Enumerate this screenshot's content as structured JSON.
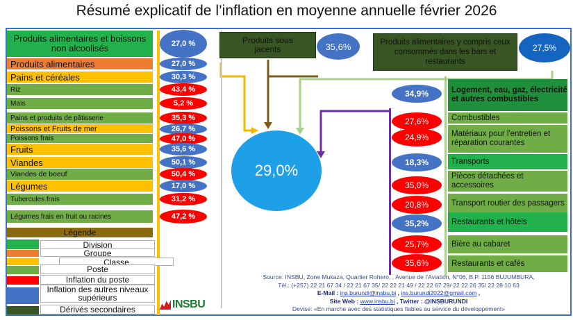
{
  "title": "Résumé  explicatif de l’inflation en moyenne annuelle février 2026",
  "colors": {
    "division": "#22b14c",
    "groupe": "#ed7d31",
    "classe": "#ffc000",
    "poste": "#70ad47",
    "inflation_poste": "#ff0000",
    "inflation_superieure": "#4472c4",
    "derives": "#375623",
    "legend_header": "#8a6a10",
    "frame": "#3b6fc9"
  },
  "left_items": [
    {
      "label": "Produits alimentaires et boissons  non alcoolisés",
      "value": "27,0 %"
    },
    {
      "label": "Produits alimentaires",
      "value": "27,0 %"
    },
    {
      "label": "Pains et céréales",
      "value": "30,3 %"
    },
    {
      "label": "Riz",
      "value": "43,4 %"
    },
    {
      "label": "Maïs",
      "value": "5,2 %"
    },
    {
      "label": "Pains et produits de pâtisserie",
      "value": "35,3 %"
    },
    {
      "label": "Poissons et Fruits de mer",
      "value": "26,7 %"
    },
    {
      "label": "Poissons frais",
      "value": "47,0 %"
    },
    {
      "label": "Fruits",
      "value": "35,6 %"
    },
    {
      "label": "Viandes",
      "value": "50,1 %"
    },
    {
      "label": "Viandes de boeuf",
      "value": "50,4 %"
    },
    {
      "label": "Légumes",
      "value": "17,0 %"
    },
    {
      "label": "Tubercules frais",
      "value": "31,2 %"
    },
    {
      "label": "Légumes frais en fruit ou racines",
      "value": "47,2 %"
    }
  ],
  "top": {
    "sous_jacents_label": "Produits sous jacents",
    "sous_jacents_value": "35,6%",
    "bars_label": "Produits alimentaires y compris ceux  consommés dans les bars et restaurants",
    "bars_value": "27,5%"
  },
  "center_value": "29,0%",
  "right_items": [
    {
      "label": "Logement, eau, gaz, électricité et autres combustibles",
      "value": "34,9%"
    },
    {
      "label": "Combustibles",
      "value": "27,6%"
    },
    {
      "label": "Matériaux pour l'entretien et réparation courantes",
      "value": "24,9%"
    },
    {
      "label": "Transports",
      "value": "18,3%"
    },
    {
      "label": "Pièces détachées et accessoires",
      "value": "35,0%"
    },
    {
      "label": "Transport routier des passagers",
      "value": "20,8%"
    },
    {
      "label": "Restaurants et hôtels",
      "value": "35,2%"
    },
    {
      "label": "Bière au cabaret",
      "value": "25,7%"
    },
    {
      "label": "Restaurants et  cafés",
      "value": "35,6%"
    }
  ],
  "legend": {
    "header": "Légende",
    "items": [
      "Division",
      "Groupe",
      "Classe",
      "Poste",
      "Inflation du  poste",
      "Inflation des autres niveaux supérieurs",
      "Dérivés secondaires"
    ]
  },
  "logo_text": "INSBU",
  "source": {
    "line1": "Source: INSBU, Zone Mukaza, Quartier Rohero, , Avenue de l’Aviation, N°06, B.P. 1156 BUJUMBURA,",
    "line2": "Tél.: (+257) 22 21 67 34 /  22 21 67 35/ 22 22 21 49 / 22 22 67 29/ 22 22 26 35/ 22 28 10 63",
    "email_prefix": "E-Mail : ",
    "email1": "ins.burundi@insbu.bi",
    "email_sep": " , ",
    "email2": "ins.burundi2022@gmail.com",
    "email_suffix": " ,",
    "web_prefix": "Site Web : ",
    "web": "www.insbu.bi",
    "twitter": "  , Twitter : @INSBURUNDI",
    "devise": "Devise: «En marche avec des statistiques fiables au service du développement»"
  }
}
